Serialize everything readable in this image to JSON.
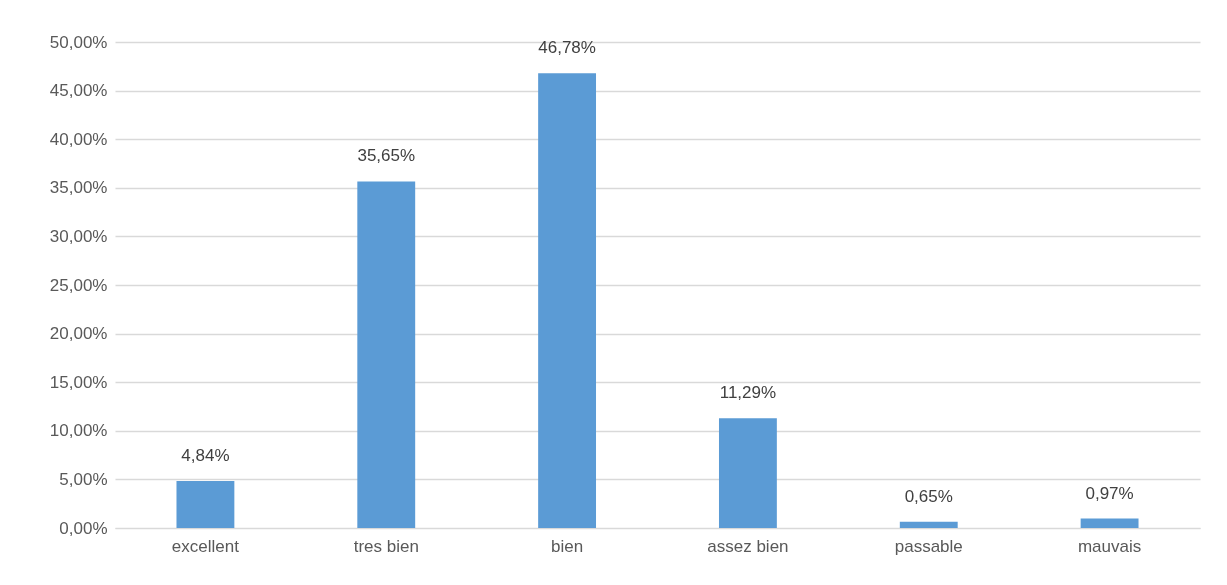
{
  "chart_data": {
    "type": "bar",
    "categories": [
      "excellent",
      "tres bien",
      "bien",
      "assez bien",
      "passable",
      "mauvais"
    ],
    "values": [
      4.84,
      35.65,
      46.78,
      11.29,
      0.65,
      0.97
    ],
    "value_labels": [
      "4,84%",
      "35,65%",
      "46,78%",
      "11,29%",
      "0,65%",
      "0,97%"
    ],
    "color": "#5b9bd5",
    "ylim": [
      0,
      50
    ],
    "yticks": [
      {
        "value": 0,
        "label": "0,00%"
      },
      {
        "value": 5,
        "label": "5,00%"
      },
      {
        "value": 10,
        "label": "10,00%"
      },
      {
        "value": 15,
        "label": "15,00%"
      },
      {
        "value": 20,
        "label": "20,00%"
      },
      {
        "value": 25,
        "label": "25,00%"
      },
      {
        "value": 30,
        "label": "30,00%"
      },
      {
        "value": 35,
        "label": "35,00%"
      },
      {
        "value": 40,
        "label": "40,00%"
      },
      {
        "value": 45,
        "label": "45,00%"
      },
      {
        "value": 50,
        "label": "50,00%"
      }
    ],
    "grid": "y"
  }
}
